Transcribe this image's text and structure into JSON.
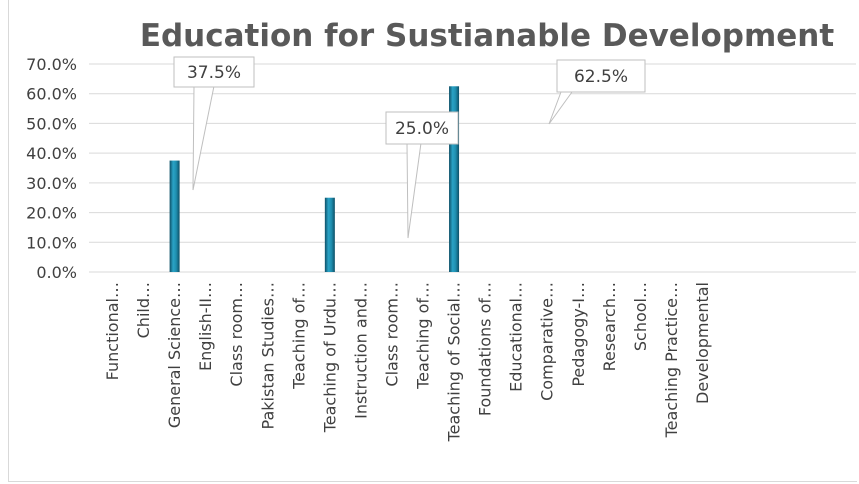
{
  "chart_data": {
    "type": "bar",
    "title": "Education for Sustianable Development",
    "xlabel": "",
    "ylabel": "",
    "ylim": [
      0,
      0.7
    ],
    "y_ticks": [
      "0.0%",
      "10.0%",
      "20.0%",
      "30.0%",
      "40.0%",
      "50.0%",
      "60.0%",
      "70.0%"
    ],
    "grid": true,
    "legend": "none",
    "categories": [
      "Functional…",
      "Child…",
      "General Science…",
      "English-II…",
      "Class room…",
      "Pakistan Studies…",
      "Teaching of…",
      "Teaching of Urdu…",
      "Instruction and…",
      "Class room…",
      "Teaching of…",
      "Teaching of Social…",
      "Foundations of…",
      "Educational…",
      "Comparative…",
      "Pedagogy-I…",
      "Research…",
      "School…",
      "Teaching Practice…",
      "Developmental"
    ],
    "values": [
      0,
      0,
      0.375,
      0,
      0,
      0,
      0,
      0.25,
      0,
      0,
      0,
      0.625,
      0,
      0,
      0,
      0,
      0,
      0,
      0,
      0
    ],
    "data_labels": [
      {
        "index": 2,
        "text": "37.5%"
      },
      {
        "index": 7,
        "text": "25.0%"
      },
      {
        "index": 11,
        "text": "62.5%"
      }
    ],
    "colors": {
      "bar": "#1f8fb0",
      "bar_dark": "#0e4f66",
      "grid": "#d9d9d9",
      "text": "#404040",
      "title": "#595959",
      "callout_border": "#bfbfbf"
    }
  }
}
